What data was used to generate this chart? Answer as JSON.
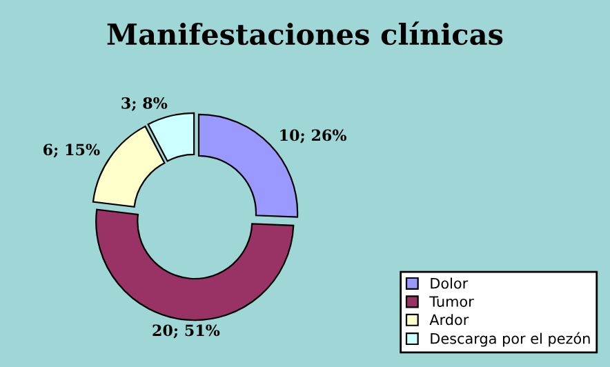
{
  "chart_data": {
    "type": "donut",
    "title": "Manifestaciones clínicas",
    "categories": [
      "Dolor",
      "Tumor",
      "Ardor",
      "Descarga por el pezón"
    ],
    "values": [
      10,
      20,
      6,
      3
    ],
    "colors": [
      "#9999ff",
      "#993366",
      "#ffffcc",
      "#ccffff"
    ],
    "value_labels": [
      "10; 26%",
      "20; 51%",
      "6; 15%",
      "3; 8%"
    ],
    "legend": "bottom right"
  }
}
